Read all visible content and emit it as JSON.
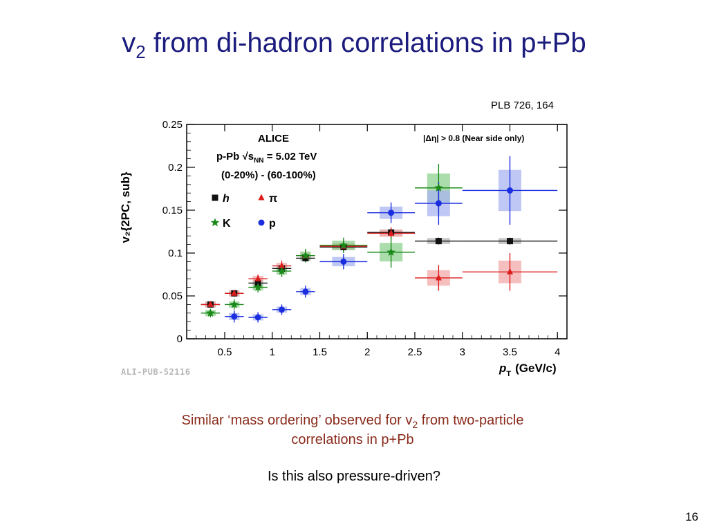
{
  "slide": {
    "title_main": "v",
    "title_sub": "2",
    "title_rest": " from di-hadron correlations in p+Pb",
    "reference": "PLB 726, 164",
    "caption_line1_a": "Similar ‘mass ordering’ observed for v",
    "caption_line1_sub": "2",
    "caption_line1_b": " from two-particle",
    "caption_line2": "correlations in p+Pb",
    "question": "Is this also pressure-driven?",
    "page_number": "16",
    "watermark": "ALI-PUB-52116"
  },
  "chart_data": {
    "type": "scatter",
    "xlim": [
      0.1,
      4.1
    ],
    "ylim": [
      0,
      0.25
    ],
    "xticks": [
      "0.5",
      "1",
      "1.5",
      "2",
      "2.5",
      "3",
      "3.5",
      "4"
    ],
    "yticks": [
      "0",
      "0.05",
      "0.1",
      "0.15",
      "0.2",
      "0.25"
    ],
    "xlabel": "p",
    "xlabel_sub": "T",
    "xlabel_unit": "(GeV/c)",
    "ylabel": "v₂{2PC, sub}",
    "annotations": {
      "experiment": "ALICE",
      "system": "p-Pb  √s",
      "system_sub": "NN",
      "system_energy": " = 5.02 TeV",
      "centrality": "(0-20%) - (60-100%)",
      "eta_gap": "|Δη| > 0.8 (Near side only)"
    },
    "legend_placement": "upper-left",
    "series": [
      {
        "name": "h",
        "marker": "square",
        "color": "#111111",
        "box": "#b5b5b5",
        "points": [
          {
            "x": 0.35,
            "y": 0.04,
            "xerr": 0.1,
            "yerr": 0.003
          },
          {
            "x": 0.6,
            "y": 0.053,
            "xerr": 0.1,
            "yerr": 0.003
          },
          {
            "x": 0.85,
            "y": 0.065,
            "xerr": 0.1,
            "yerr": 0.003
          },
          {
            "x": 1.1,
            "y": 0.082,
            "xerr": 0.1,
            "yerr": 0.003
          },
          {
            "x": 1.35,
            "y": 0.094,
            "xerr": 0.1,
            "yerr": 0.003
          },
          {
            "x": 1.75,
            "y": 0.107,
            "xerr": 0.25,
            "yerr": 0.003
          },
          {
            "x": 2.25,
            "y": 0.124,
            "xerr": 0.25,
            "yerr": 0.003
          },
          {
            "x": 2.75,
            "y": 0.114,
            "xerr": 0.25,
            "yerr": 0.004
          },
          {
            "x": 3.5,
            "y": 0.114,
            "xerr": 0.5,
            "yerr": 0.004
          }
        ]
      },
      {
        "name": "π",
        "marker": "triangle",
        "color": "#dd1c1c",
        "box": "#f2aaaa",
        "points": [
          {
            "x": 0.35,
            "y": 0.04,
            "xerr": 0.1,
            "yerr": 0.003
          },
          {
            "x": 0.6,
            "y": 0.053,
            "xerr": 0.1,
            "yerr": 0.004
          },
          {
            "x": 0.85,
            "y": 0.07,
            "xerr": 0.1,
            "yerr": 0.005
          },
          {
            "x": 1.1,
            "y": 0.085,
            "xerr": 0.1,
            "yerr": 0.006
          },
          {
            "x": 1.35,
            "y": 0.097,
            "xerr": 0.1,
            "yerr": 0.006
          },
          {
            "x": 1.75,
            "y": 0.108,
            "xerr": 0.25,
            "yerr": 0.006
          },
          {
            "x": 2.25,
            "y": 0.123,
            "xerr": 0.25,
            "yerr": 0.007
          },
          {
            "x": 2.75,
            "y": 0.071,
            "xerr": 0.25,
            "yerr": 0.015
          },
          {
            "x": 3.5,
            "y": 0.078,
            "xerr": 0.5,
            "yerr": 0.022
          }
        ]
      },
      {
        "name": "K",
        "marker": "star",
        "color": "#1b8a1b",
        "box": "#8fd08f",
        "points": [
          {
            "x": 0.35,
            "y": 0.03,
            "xerr": 0.1,
            "yerr": 0.005
          },
          {
            "x": 0.6,
            "y": 0.04,
            "xerr": 0.1,
            "yerr": 0.006
          },
          {
            "x": 0.85,
            "y": 0.06,
            "xerr": 0.1,
            "yerr": 0.006
          },
          {
            "x": 1.1,
            "y": 0.079,
            "xerr": 0.1,
            "yerr": 0.007
          },
          {
            "x": 1.35,
            "y": 0.097,
            "xerr": 0.1,
            "yerr": 0.008
          },
          {
            "x": 1.75,
            "y": 0.109,
            "xerr": 0.25,
            "yerr": 0.009
          },
          {
            "x": 2.25,
            "y": 0.101,
            "xerr": 0.25,
            "yerr": 0.018
          },
          {
            "x": 2.75,
            "y": 0.176,
            "xerr": 0.25,
            "yerr": 0.028
          },
          {
            "x": 3.5,
            "y": null,
            "xerr": 0,
            "yerr": 0
          }
        ]
      },
      {
        "name": "p",
        "marker": "circle",
        "color": "#1a2ee0",
        "box": "#aab6f0",
        "points": [
          {
            "x": 0.35,
            "y": null,
            "xerr": 0,
            "yerr": 0
          },
          {
            "x": 0.6,
            "y": 0.026,
            "xerr": 0.1,
            "yerr": 0.007
          },
          {
            "x": 0.85,
            "y": 0.025,
            "xerr": 0.1,
            "yerr": 0.006
          },
          {
            "x": 1.1,
            "y": 0.034,
            "xerr": 0.1,
            "yerr": 0.006
          },
          {
            "x": 1.35,
            "y": 0.055,
            "xerr": 0.1,
            "yerr": 0.007
          },
          {
            "x": 1.75,
            "y": 0.09,
            "xerr": 0.25,
            "yerr": 0.009
          },
          {
            "x": 2.25,
            "y": 0.147,
            "xerr": 0.25,
            "yerr": 0.012
          },
          {
            "x": 2.75,
            "y": 0.158,
            "xerr": 0.25,
            "yerr": 0.025
          },
          {
            "x": 3.5,
            "y": 0.173,
            "xerr": 0.5,
            "yerr": 0.04
          }
        ]
      }
    ]
  }
}
